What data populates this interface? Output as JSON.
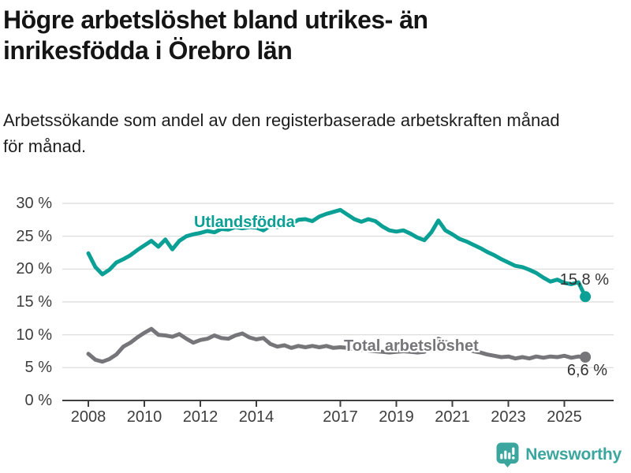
{
  "header": {
    "title": "Högre arbetslöshet bland utrikes- än inrikesfödda i Örebro län",
    "subtitle": "Arbetssökande som andel av den registerbaserade arbetskraften månad för månad."
  },
  "footer": {
    "brand": "Newsworthy",
    "logo_icon": "newsworthy-speech-bubble-bar-chart-icon"
  },
  "colors": {
    "series_utlandsfodda": "#0ba095",
    "series_total": "#76767a",
    "brand_teal": "#3ba69d",
    "grid": "#d9d9d9",
    "axis": "#3f3f3f",
    "tick_text": "#3d3d3d"
  },
  "chart_data": {
    "type": "line",
    "title": "Högre arbetslöshet bland utrikes- än inrikesfödda i Örebro län",
    "subtitle": "Arbetssökande som andel av den registerbaserade arbetskraften månad för månad.",
    "unit": "%",
    "grid": "horizontal",
    "legend_position": "inline-labels",
    "x_axis": {
      "range": [
        2007.6,
        2026.6
      ],
      "ticks": [
        2008,
        2010,
        2012,
        2014,
        2017,
        2019,
        2021,
        2023,
        2025
      ],
      "tick_labels": [
        "2008",
        "2010",
        "2012",
        "2014",
        "2017",
        "2019",
        "2021",
        "2023",
        "2025"
      ]
    },
    "y_axis": {
      "range": [
        0,
        30
      ],
      "ticks": [
        0,
        5,
        10,
        15,
        20,
        25,
        30
      ],
      "tick_labels": [
        "0 %",
        "5 %",
        "10 %",
        "15 %",
        "20 %",
        "25 %",
        "30 %"
      ]
    },
    "x": [
      2008,
      2008.25,
      2008.5,
      2008.75,
      2009,
      2009.25,
      2009.5,
      2009.75,
      2010,
      2010.25,
      2010.5,
      2010.75,
      2011,
      2011.25,
      2011.5,
      2011.75,
      2012,
      2012.25,
      2012.5,
      2012.75,
      2013,
      2013.25,
      2013.5,
      2013.75,
      2014,
      2014.25,
      2014.5,
      2014.75,
      2015,
      2015.25,
      2015.5,
      2015.75,
      2016,
      2016.25,
      2016.5,
      2016.75,
      2017,
      2017.25,
      2017.5,
      2017.75,
      2018,
      2018.25,
      2018.5,
      2018.75,
      2019,
      2019.25,
      2019.5,
      2019.75,
      2020,
      2020.25,
      2020.5,
      2020.75,
      2021,
      2021.25,
      2021.5,
      2021.75,
      2022,
      2022.25,
      2022.5,
      2022.75,
      2023,
      2023.25,
      2023.5,
      2023.75,
      2024,
      2024.25,
      2024.5,
      2024.75,
      2025,
      2025.25,
      2025.5,
      2025.75
    ],
    "series": [
      {
        "id": "utlandsfodda",
        "name": "Utlandsfödda",
        "color": "#0ba095",
        "end_value": 15.8,
        "end_label": "15,8 %",
        "values": [
          22.4,
          20.3,
          19.2,
          19.9,
          21.0,
          21.5,
          22.1,
          22.9,
          23.6,
          24.3,
          23.4,
          24.5,
          23.0,
          24.3,
          25.0,
          25.3,
          25.5,
          25.8,
          25.6,
          26.1,
          26.0,
          26.4,
          26.2,
          26.4,
          26.3,
          25.9,
          26.6,
          26.4,
          26.7,
          26.9,
          27.5,
          27.6,
          27.3,
          28.0,
          28.4,
          28.7,
          29.0,
          28.3,
          27.6,
          27.2,
          27.6,
          27.3,
          26.5,
          25.9,
          25.7,
          25.9,
          25.4,
          24.8,
          24.4,
          25.6,
          27.4,
          25.9,
          25.3,
          24.6,
          24.2,
          23.7,
          23.2,
          22.6,
          22.1,
          21.5,
          21.0,
          20.5,
          20.3,
          19.9,
          19.4,
          18.7,
          18.1,
          18.4,
          17.9,
          17.7,
          18.0,
          15.8
        ]
      },
      {
        "id": "total-arbetsloshet",
        "name": "Total arbetslöshet",
        "color": "#76767a",
        "end_value": 6.6,
        "end_label": "6,6 %",
        "values": [
          7.1,
          6.2,
          5.9,
          6.3,
          7.0,
          8.2,
          8.8,
          9.6,
          10.3,
          10.9,
          10.0,
          9.9,
          9.7,
          10.1,
          9.4,
          8.8,
          9.2,
          9.4,
          9.9,
          9.5,
          9.4,
          9.9,
          10.2,
          9.6,
          9.3,
          9.5,
          8.6,
          8.2,
          8.4,
          8.0,
          8.3,
          8.1,
          8.3,
          8.1,
          8.3,
          8.0,
          8.1,
          8.0,
          7.8,
          7.7,
          7.6,
          7.5,
          7.4,
          7.3,
          7.4,
          7.5,
          7.4,
          7.3,
          7.4,
          8.6,
          9.4,
          8.9,
          8.7,
          8.3,
          7.9,
          7.5,
          7.3,
          7.0,
          6.8,
          6.6,
          6.7,
          6.4,
          6.6,
          6.4,
          6.7,
          6.5,
          6.7,
          6.6,
          6.8,
          6.5,
          6.7,
          6.6
        ]
      }
    ]
  }
}
